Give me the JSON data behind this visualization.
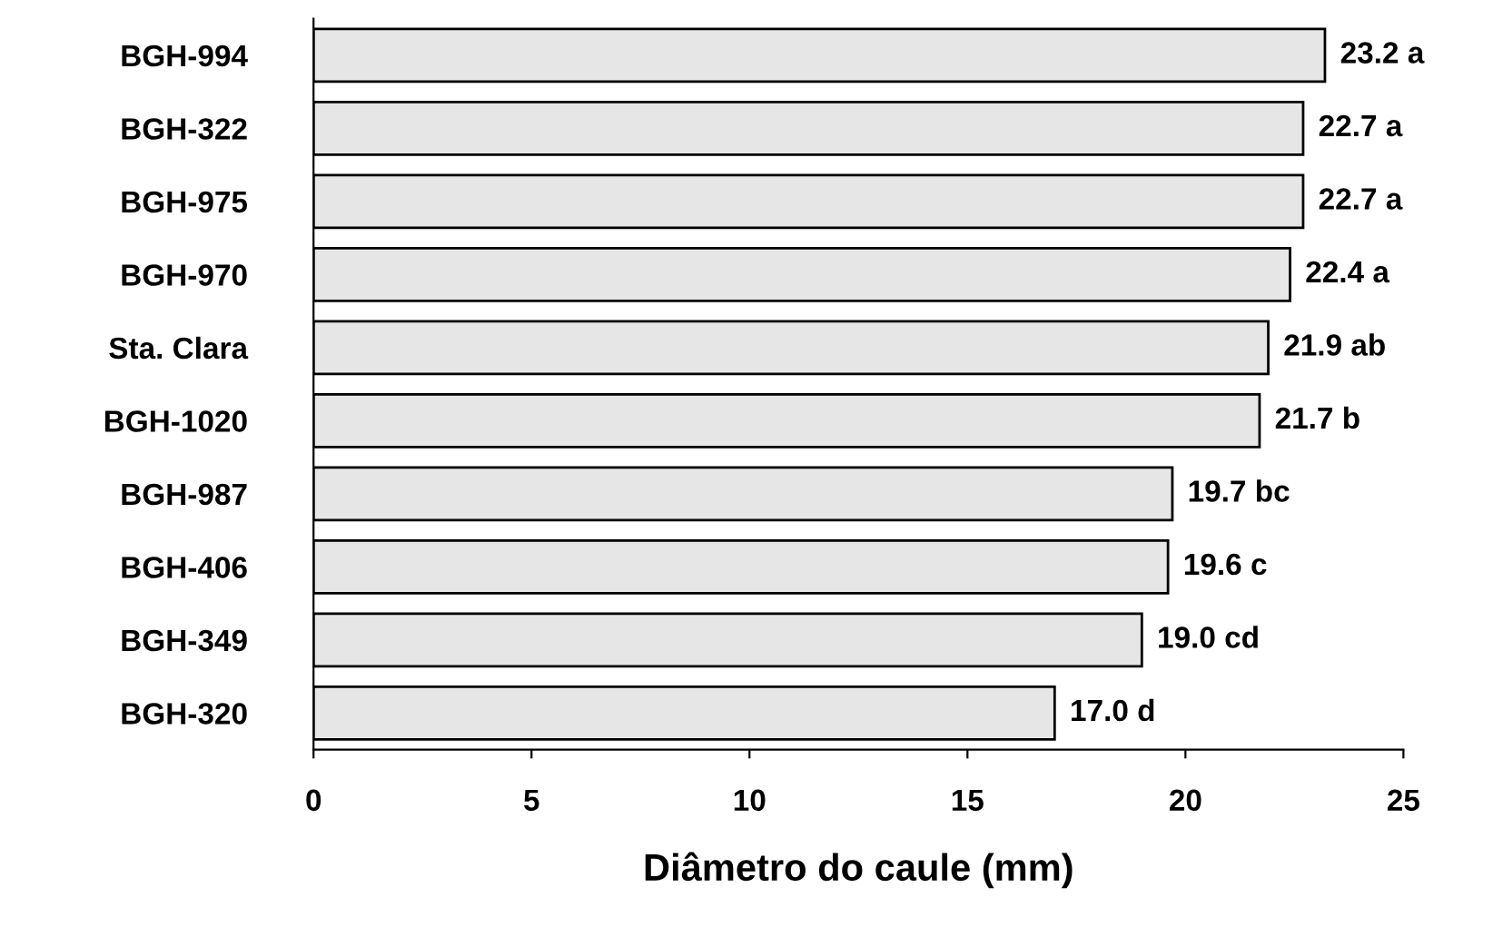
{
  "chart_data": {
    "type": "bar",
    "orientation": "horizontal",
    "xlabel": "Diâmetro do caule (mm)",
    "categories": [
      "BGH-994",
      "BGH-322",
      "BGH-975",
      "BGH-970",
      "Sta. Clara",
      "BGH-1020",
      "BGH-987",
      "BGH-406",
      "BGH-349",
      "BGH-320"
    ],
    "values": [
      23.2,
      22.7,
      22.7,
      22.4,
      21.9,
      21.7,
      19.7,
      19.6,
      19.0,
      17.0
    ],
    "value_labels": [
      "23.2 a",
      "22.7 a",
      "22.7 a",
      "22.4 a",
      "21.9 ab",
      "21.7 b",
      "19.7 bc",
      "19.6 c",
      "19.0 cd",
      "17.0 d"
    ],
    "color": "#e6e6e6",
    "xlim": [
      0,
      25
    ],
    "xticks": [
      0,
      5,
      10,
      15,
      20,
      25
    ],
    "grid": false
  }
}
